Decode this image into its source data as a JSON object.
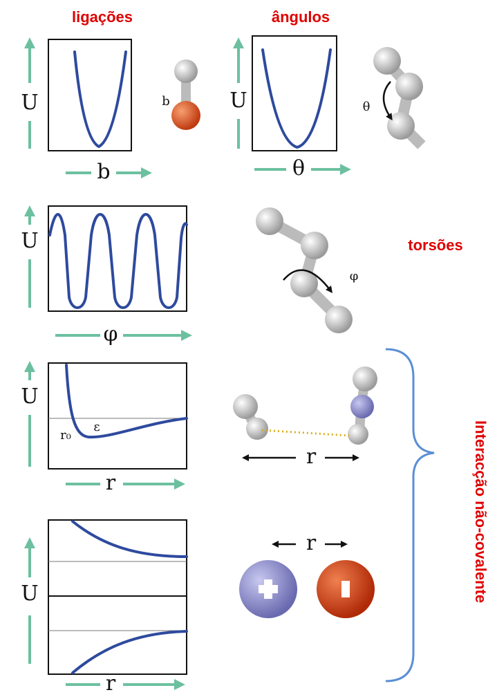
{
  "headers": {
    "bonds": "ligações",
    "angles": "ângulos",
    "torsions": "torsões",
    "noncovalent": "Interacção não-covalente"
  },
  "panels": [
    {
      "y_label": "U",
      "x_label": "b"
    },
    {
      "y_label": "U",
      "x_label": "θ"
    },
    {
      "y_label": "U",
      "x_label": "φ"
    },
    {
      "y_label": "U",
      "x_label": "r",
      "min_distance_label": "r₀",
      "well_depth_label": "ε"
    },
    {
      "y_label": "U",
      "x_label": "r"
    }
  ],
  "molecule_labels": {
    "bond": "b",
    "angle": "θ",
    "torsion": "φ",
    "distance": "r",
    "charge_distance": "r"
  }
}
